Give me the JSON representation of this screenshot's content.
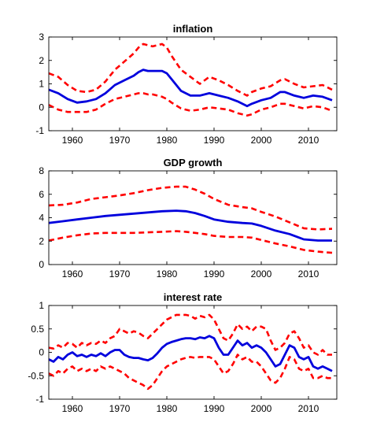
{
  "chart_data": [
    {
      "type": "line",
      "title": "inflation",
      "xlabel": "",
      "ylabel": "",
      "xlim": [
        1955,
        2016
      ],
      "ylim": [
        -1,
        3
      ],
      "xticks": [
        1960,
        1970,
        1980,
        1990,
        2000,
        2010
      ],
      "yticks": [
        -1,
        0,
        1,
        2,
        3
      ],
      "grid": false,
      "series": [
        {
          "role": "upper band",
          "color": "#ff0000",
          "style": "dashed",
          "x": [
            1955,
            1957,
            1959,
            1961,
            1963,
            1965,
            1967,
            1969,
            1971,
            1973,
            1974,
            1975,
            1976,
            1977,
            1978,
            1979,
            1980,
            1981,
            1983,
            1985,
            1987,
            1989,
            1991,
            1993,
            1995,
            1997,
            1998,
            2000,
            2002,
            2004,
            2005,
            2007,
            2009,
            2011,
            2013,
            2015
          ],
          "y": [
            1.45,
            1.3,
            0.95,
            0.7,
            0.65,
            0.75,
            1.1,
            1.6,
            1.95,
            2.3,
            2.55,
            2.7,
            2.65,
            2.6,
            2.65,
            2.7,
            2.55,
            2.2,
            1.6,
            1.3,
            1.0,
            1.3,
            1.15,
            0.95,
            0.7,
            0.5,
            0.65,
            0.8,
            0.9,
            1.15,
            1.2,
            1.0,
            0.85,
            0.9,
            0.95,
            0.75
          ]
        },
        {
          "role": "estimate",
          "color": "#0000dd",
          "style": "solid",
          "x": [
            1955,
            1957,
            1959,
            1961,
            1963,
            1965,
            1967,
            1969,
            1971,
            1973,
            1974,
            1975,
            1976,
            1977,
            1978,
            1979,
            1980,
            1981,
            1983,
            1985,
            1987,
            1989,
            1991,
            1993,
            1995,
            1997,
            1998,
            2000,
            2002,
            2004,
            2005,
            2007,
            2009,
            2011,
            2013,
            2015
          ],
          "y": [
            0.75,
            0.6,
            0.35,
            0.2,
            0.25,
            0.35,
            0.6,
            0.95,
            1.15,
            1.35,
            1.5,
            1.6,
            1.55,
            1.55,
            1.55,
            1.55,
            1.45,
            1.2,
            0.7,
            0.5,
            0.5,
            0.6,
            0.5,
            0.4,
            0.25,
            0.05,
            0.15,
            0.3,
            0.4,
            0.65,
            0.65,
            0.5,
            0.4,
            0.5,
            0.45,
            0.3
          ]
        },
        {
          "role": "lower band",
          "color": "#ff0000",
          "style": "dashed",
          "x": [
            1955,
            1957,
            1959,
            1961,
            1963,
            1965,
            1967,
            1969,
            1971,
            1973,
            1974,
            1975,
            1976,
            1977,
            1978,
            1979,
            1980,
            1981,
            1983,
            1985,
            1987,
            1989,
            1991,
            1993,
            1995,
            1997,
            1998,
            2000,
            2002,
            2004,
            2005,
            2007,
            2009,
            2011,
            2013,
            2015
          ],
          "y": [
            0.1,
            -0.1,
            -0.2,
            -0.2,
            -0.2,
            -0.1,
            0.15,
            0.35,
            0.45,
            0.55,
            0.6,
            0.6,
            0.55,
            0.55,
            0.5,
            0.45,
            0.35,
            0.2,
            -0.05,
            -0.15,
            -0.1,
            0.0,
            -0.05,
            -0.1,
            -0.25,
            -0.35,
            -0.3,
            -0.1,
            0.0,
            0.15,
            0.15,
            0.05,
            -0.05,
            0.05,
            0.0,
            -0.15
          ]
        }
      ]
    },
    {
      "type": "line",
      "title": "GDP growth",
      "xlabel": "",
      "ylabel": "",
      "xlim": [
        1955,
        2016
      ],
      "ylim": [
        0,
        8
      ],
      "xticks": [
        1960,
        1970,
        1980,
        1990,
        2000,
        2010
      ],
      "yticks": [
        0,
        2,
        4,
        6,
        8
      ],
      "grid": false,
      "series": [
        {
          "role": "upper band",
          "color": "#ff0000",
          "style": "dashed",
          "x": [
            1955,
            1958,
            1961,
            1964,
            1967,
            1970,
            1973,
            1976,
            1979,
            1982,
            1984,
            1986,
            1988,
            1990,
            1993,
            1996,
            1998,
            2000,
            2003,
            2006,
            2009,
            2012,
            2015
          ],
          "y": [
            5.05,
            5.1,
            5.3,
            5.6,
            5.75,
            5.9,
            6.1,
            6.35,
            6.55,
            6.65,
            6.65,
            6.4,
            6.05,
            5.6,
            5.1,
            4.9,
            4.8,
            4.5,
            4.1,
            3.6,
            3.1,
            3.0,
            3.05
          ]
        },
        {
          "role": "estimate",
          "color": "#0000dd",
          "style": "solid",
          "x": [
            1955,
            1958,
            1961,
            1964,
            1967,
            1970,
            1973,
            1976,
            1979,
            1982,
            1984,
            1986,
            1988,
            1990,
            1993,
            1996,
            1998,
            2000,
            2003,
            2006,
            2009,
            2012,
            2015
          ],
          "y": [
            3.55,
            3.7,
            3.85,
            4.0,
            4.15,
            4.25,
            4.35,
            4.45,
            4.55,
            4.6,
            4.55,
            4.4,
            4.15,
            3.85,
            3.65,
            3.55,
            3.5,
            3.3,
            2.9,
            2.6,
            2.15,
            2.05,
            2.05
          ]
        },
        {
          "role": "lower band",
          "color": "#ff0000",
          "style": "dashed",
          "x": [
            1955,
            1958,
            1961,
            1964,
            1967,
            1970,
            1973,
            1976,
            1979,
            1982,
            1984,
            1986,
            1988,
            1990,
            1993,
            1996,
            1998,
            2000,
            2003,
            2006,
            2009,
            2012,
            2015
          ],
          "y": [
            2.05,
            2.3,
            2.5,
            2.65,
            2.7,
            2.7,
            2.7,
            2.75,
            2.8,
            2.85,
            2.8,
            2.7,
            2.6,
            2.45,
            2.35,
            2.35,
            2.3,
            2.1,
            1.8,
            1.55,
            1.25,
            1.1,
            1.0
          ]
        }
      ]
    },
    {
      "type": "line",
      "title": "interest rate",
      "xlabel": "",
      "ylabel": "",
      "xlim": [
        1955,
        2016
      ],
      "ylim": [
        -1,
        1
      ],
      "xticks": [
        1960,
        1970,
        1980,
        1990,
        2000,
        2010
      ],
      "yticks": [
        -1,
        -0.5,
        0,
        0.5,
        1
      ],
      "grid": false,
      "series": [
        {
          "role": "upper band",
          "color": "#ff0000",
          "style": "dashed",
          "x": [
            1955,
            1956,
            1957,
            1958,
            1959,
            1960,
            1961,
            1962,
            1963,
            1964,
            1965,
            1966,
            1967,
            1968,
            1969,
            1970,
            1971,
            1972,
            1973,
            1974,
            1975,
            1976,
            1977,
            1978,
            1979,
            1980,
            1981,
            1982,
            1983,
            1984,
            1985,
            1986,
            1987,
            1988,
            1989,
            1990,
            1991,
            1992,
            1993,
            1994,
            1995,
            1996,
            1997,
            1998,
            1999,
            2000,
            2001,
            2002,
            2003,
            2004,
            2005,
            2006,
            2007,
            2008,
            2009,
            2010,
            2011,
            2012,
            2013,
            2014,
            2015
          ],
          "y": [
            0.1,
            0.08,
            0.15,
            0.1,
            0.2,
            0.18,
            0.1,
            0.2,
            0.15,
            0.2,
            0.18,
            0.25,
            0.2,
            0.3,
            0.35,
            0.5,
            0.45,
            0.4,
            0.45,
            0.42,
            0.35,
            0.3,
            0.4,
            0.5,
            0.6,
            0.7,
            0.75,
            0.8,
            0.8,
            0.8,
            0.78,
            0.72,
            0.78,
            0.75,
            0.8,
            0.7,
            0.5,
            0.3,
            0.25,
            0.4,
            0.6,
            0.5,
            0.55,
            0.45,
            0.55,
            0.55,
            0.5,
            0.25,
            0.05,
            0.1,
            0.2,
            0.4,
            0.45,
            0.3,
            0.1,
            0.15,
            0.0,
            -0.05,
            0.05,
            -0.05,
            -0.05
          ]
        },
        {
          "role": "estimate",
          "color": "#0000dd",
          "style": "solid",
          "x": [
            1955,
            1956,
            1957,
            1958,
            1959,
            1960,
            1961,
            1962,
            1963,
            1964,
            1965,
            1966,
            1967,
            1968,
            1969,
            1970,
            1971,
            1972,
            1973,
            1974,
            1975,
            1976,
            1977,
            1978,
            1979,
            1980,
            1981,
            1982,
            1983,
            1984,
            1985,
            1986,
            1987,
            1988,
            1989,
            1990,
            1991,
            1992,
            1993,
            1994,
            1995,
            1996,
            1997,
            1998,
            1999,
            2000,
            2001,
            2002,
            2003,
            2004,
            2005,
            2006,
            2007,
            2008,
            2009,
            2010,
            2011,
            2012,
            2013,
            2014,
            2015
          ],
          "y": [
            -0.15,
            -0.2,
            -0.1,
            -0.15,
            -0.05,
            0.0,
            -0.08,
            -0.05,
            -0.1,
            -0.05,
            -0.08,
            -0.02,
            -0.08,
            0.0,
            0.05,
            0.05,
            -0.05,
            -0.1,
            -0.12,
            -0.12,
            -0.15,
            -0.17,
            -0.12,
            -0.02,
            0.1,
            0.18,
            0.22,
            0.25,
            0.28,
            0.3,
            0.3,
            0.28,
            0.32,
            0.3,
            0.35,
            0.3,
            0.1,
            -0.05,
            -0.05,
            0.1,
            0.25,
            0.15,
            0.2,
            0.1,
            0.15,
            0.1,
            0.0,
            -0.15,
            -0.3,
            -0.25,
            -0.05,
            0.15,
            0.1,
            -0.1,
            -0.15,
            -0.1,
            -0.3,
            -0.35,
            -0.3,
            -0.35,
            -0.4
          ]
        },
        {
          "role": "lower band",
          "color": "#ff0000",
          "style": "dashed",
          "x": [
            1955,
            1956,
            1957,
            1958,
            1959,
            1960,
            1961,
            1962,
            1963,
            1964,
            1965,
            1966,
            1967,
            1968,
            1969,
            1970,
            1971,
            1972,
            1973,
            1974,
            1975,
            1976,
            1977,
            1978,
            1979,
            1980,
            1981,
            1982,
            1983,
            1984,
            1985,
            1986,
            1987,
            1988,
            1989,
            1990,
            1991,
            1992,
            1993,
            1994,
            1995,
            1996,
            1997,
            1998,
            1999,
            2000,
            2001,
            2002,
            2003,
            2004,
            2005,
            2006,
            2007,
            2008,
            2009,
            2010,
            2011,
            2012,
            2013,
            2014,
            2015
          ],
          "y": [
            -0.45,
            -0.5,
            -0.4,
            -0.45,
            -0.35,
            -0.3,
            -0.4,
            -0.35,
            -0.4,
            -0.35,
            -0.4,
            -0.3,
            -0.35,
            -0.3,
            -0.35,
            -0.4,
            -0.45,
            -0.55,
            -0.6,
            -0.65,
            -0.7,
            -0.78,
            -0.7,
            -0.55,
            -0.4,
            -0.3,
            -0.25,
            -0.2,
            -0.15,
            -0.12,
            -0.1,
            -0.12,
            -0.1,
            -0.1,
            -0.1,
            -0.15,
            -0.3,
            -0.45,
            -0.4,
            -0.25,
            -0.05,
            -0.15,
            -0.1,
            -0.2,
            -0.2,
            -0.3,
            -0.45,
            -0.6,
            -0.65,
            -0.55,
            -0.35,
            -0.1,
            -0.15,
            -0.35,
            -0.4,
            -0.35,
            -0.55,
            -0.55,
            -0.5,
            -0.55,
            -0.55
          ]
        }
      ]
    }
  ]
}
